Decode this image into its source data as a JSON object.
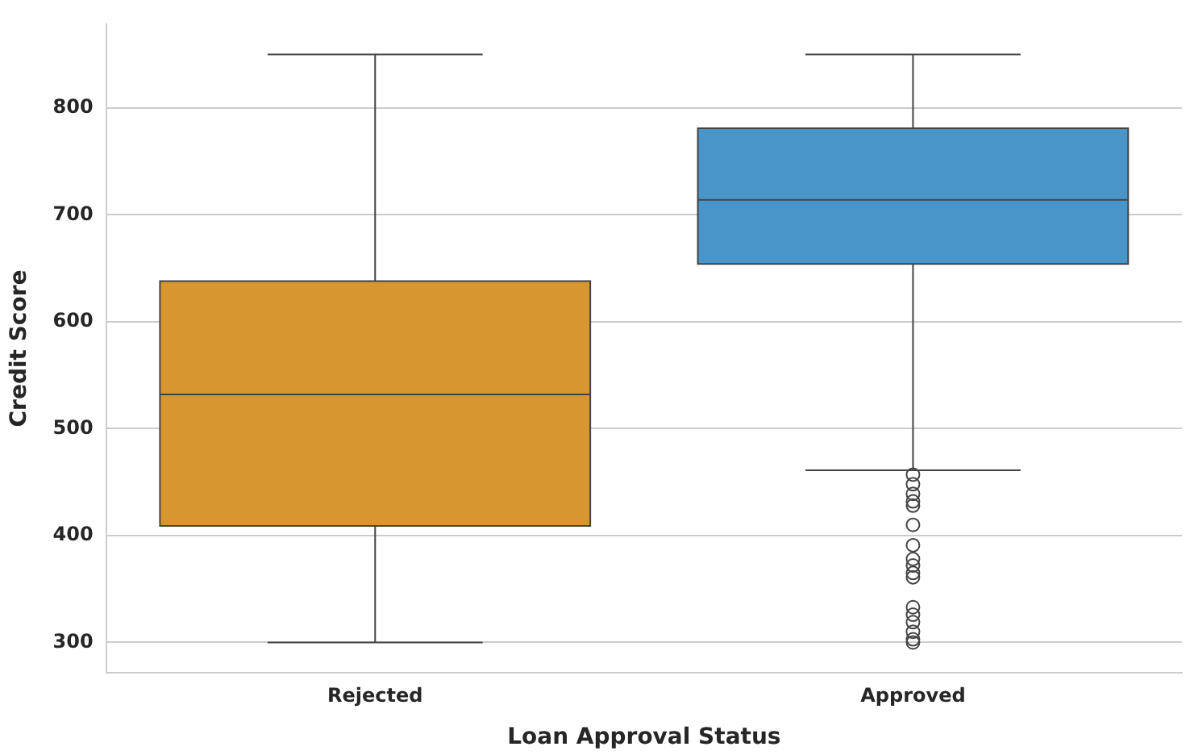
{
  "chart_data": {
    "type": "box",
    "xlabel": "Loan Approval Status",
    "ylabel": "Credit Score",
    "categories": [
      "Rejected",
      "Approved"
    ],
    "colors": [
      "#d8962f",
      "#4896c9"
    ],
    "boxes": [
      {
        "low": 300,
        "q1": 409,
        "median": 532,
        "q3": 638,
        "high": 850
      },
      {
        "low": 461,
        "q1": 654,
        "median": 714,
        "q3": 781,
        "high": 850,
        "outliers": [
          457,
          448,
          439,
          432,
          428,
          410,
          391,
          378,
          372,
          365,
          361,
          333,
          326,
          319,
          310,
          303,
          300
        ]
      }
    ],
    "ylim": [
      272,
      878
    ],
    "yticks": [
      300,
      400,
      500,
      600,
      700,
      800
    ],
    "grid": "y"
  }
}
